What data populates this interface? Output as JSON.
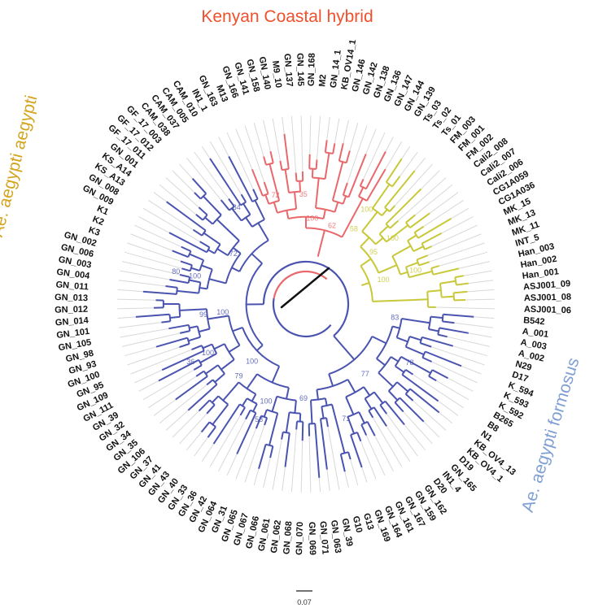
{
  "figure": {
    "title": "",
    "colors": {
      "aegypti": "#c8c83a",
      "hybrid": "#e8686c",
      "formosus": "#4a54b0",
      "root": "#111111",
      "hybrid_title": "#f0502a",
      "aegypti_title": "#d4a520",
      "formosus_title": "#7f9fd4",
      "guide": "#d8d8d8"
    },
    "clades": [
      {
        "name": "aegypti",
        "label": "Ae. aegypti aegypti",
        "color_key": "aegypti"
      },
      {
        "name": "hybrid",
        "label": "Kenyan Coastal hybrid",
        "color_key": "hybrid"
      },
      {
        "name": "formosus",
        "label": "Ae. aegypti formosus",
        "color_key": "formosus"
      }
    ],
    "leaves_clockwise_from_bottom": [
      {
        "label": "GN_070",
        "clade": "formosus"
      },
      {
        "label": "GN_068",
        "clade": "formosus"
      },
      {
        "label": "GN_062",
        "clade": "formosus"
      },
      {
        "label": "GN_061",
        "clade": "formosus"
      },
      {
        "label": "GN_066",
        "clade": "formosus"
      },
      {
        "label": "GN_067",
        "clade": "formosus"
      },
      {
        "label": "GN_065",
        "clade": "formosus"
      },
      {
        "label": "GN_31",
        "clade": "formosus"
      },
      {
        "label": "GN_064",
        "clade": "formosus"
      },
      {
        "label": "GN_42",
        "clade": "formosus"
      },
      {
        "label": "GN_36",
        "clade": "formosus"
      },
      {
        "label": "GN_33",
        "clade": "formosus"
      },
      {
        "label": "GN_40",
        "clade": "formosus"
      },
      {
        "label": "GN_43",
        "clade": "formosus"
      },
      {
        "label": "GN_41",
        "clade": "formosus"
      },
      {
        "label": "GN_37",
        "clade": "formosus"
      },
      {
        "label": "GN_106",
        "clade": "formosus"
      },
      {
        "label": "GN_35",
        "clade": "formosus"
      },
      {
        "label": "GN_34",
        "clade": "formosus"
      },
      {
        "label": "GN_32",
        "clade": "formosus"
      },
      {
        "label": "GN_39",
        "clade": "formosus"
      },
      {
        "label": "GN_111",
        "clade": "formosus"
      },
      {
        "label": "GN_109",
        "clade": "formosus"
      },
      {
        "label": "GN_95",
        "clade": "formosus"
      },
      {
        "label": "GN_100",
        "clade": "formosus"
      },
      {
        "label": "GN_93",
        "clade": "formosus"
      },
      {
        "label": "GN_98",
        "clade": "formosus"
      },
      {
        "label": "GN_105",
        "clade": "formosus"
      },
      {
        "label": "GN_101",
        "clade": "formosus"
      },
      {
        "label": "GN_014",
        "clade": "formosus"
      },
      {
        "label": "GN_012",
        "clade": "formosus"
      },
      {
        "label": "GN_013",
        "clade": "formosus"
      },
      {
        "label": "GN_011",
        "clade": "formosus"
      },
      {
        "label": "GN_004",
        "clade": "formosus"
      },
      {
        "label": "GN_003",
        "clade": "formosus"
      },
      {
        "label": "GN_006",
        "clade": "formosus"
      },
      {
        "label": "GN_002",
        "clade": "formosus"
      },
      {
        "label": "K3",
        "clade": "formosus"
      },
      {
        "label": "K2",
        "clade": "formosus"
      },
      {
        "label": "K1",
        "clade": "formosus"
      },
      {
        "label": "GN_009",
        "clade": "formosus"
      },
      {
        "label": "GN_008",
        "clade": "formosus"
      },
      {
        "label": "KS_A13",
        "clade": "formosus"
      },
      {
        "label": "KS_A14",
        "clade": "formosus"
      },
      {
        "label": "GN_001",
        "clade": "formosus"
      },
      {
        "label": "GF_17_011",
        "clade": "formosus"
      },
      {
        "label": "GF_17_012",
        "clade": "formosus"
      },
      {
        "label": "GF_17_003",
        "clade": "formosus"
      },
      {
        "label": "CAM_038",
        "clade": "formosus"
      },
      {
        "label": "CAM_037",
        "clade": "formosus"
      },
      {
        "label": "CAM_005",
        "clade": "formosus"
      },
      {
        "label": "CAM_010",
        "clade": "formosus"
      },
      {
        "label": "IN1_1",
        "clade": "formosus"
      },
      {
        "label": "GN_163",
        "clade": "formosus"
      },
      {
        "label": "M13",
        "clade": "hybrid"
      },
      {
        "label": "GN_166",
        "clade": "hybrid"
      },
      {
        "label": "GN_141",
        "clade": "hybrid"
      },
      {
        "label": "GN_158",
        "clade": "hybrid"
      },
      {
        "label": "GN_140",
        "clade": "hybrid"
      },
      {
        "label": "M9_10",
        "clade": "hybrid"
      },
      {
        "label": "GN_137",
        "clade": "hybrid"
      },
      {
        "label": "GN_145",
        "clade": "hybrid"
      },
      {
        "label": "GN_168",
        "clade": "hybrid"
      },
      {
        "label": "M2",
        "clade": "hybrid"
      },
      {
        "label": "GN_14_1",
        "clade": "hybrid"
      },
      {
        "label": "KB_OV14_1",
        "clade": "hybrid"
      },
      {
        "label": "GN_146",
        "clade": "hybrid"
      },
      {
        "label": "GN_142",
        "clade": "hybrid"
      },
      {
        "label": "GN_138",
        "clade": "hybrid"
      },
      {
        "label": "GN_136",
        "clade": "hybrid"
      },
      {
        "label": "GN_147",
        "clade": "hybrid"
      },
      {
        "label": "GN_144",
        "clade": "hybrid"
      },
      {
        "label": "GN_139",
        "clade": "hybrid"
      },
      {
        "label": "Ts_03",
        "clade": "aegypti"
      },
      {
        "label": "Ts_02",
        "clade": "aegypti"
      },
      {
        "label": "Ts_01",
        "clade": "aegypti"
      },
      {
        "label": "FM_003",
        "clade": "aegypti"
      },
      {
        "label": "FM_001",
        "clade": "aegypti"
      },
      {
        "label": "FM_002",
        "clade": "aegypti"
      },
      {
        "label": "Cali2_008",
        "clade": "aegypti"
      },
      {
        "label": "Cali2_007",
        "clade": "aegypti"
      },
      {
        "label": "Cali2_006",
        "clade": "aegypti"
      },
      {
        "label": "CG1A059",
        "clade": "aegypti"
      },
      {
        "label": "CG1A036",
        "clade": "aegypti"
      },
      {
        "label": "MK_15",
        "clade": "aegypti"
      },
      {
        "label": "MK_13",
        "clade": "aegypti"
      },
      {
        "label": "MK_11",
        "clade": "aegypti"
      },
      {
        "label": "INT_5",
        "clade": "aegypti"
      },
      {
        "label": "Han_003",
        "clade": "aegypti"
      },
      {
        "label": "Han_002",
        "clade": "aegypti"
      },
      {
        "label": "Han_001",
        "clade": "aegypti"
      },
      {
        "label": "ASJ001_09",
        "clade": "aegypti"
      },
      {
        "label": "ASJ001_08",
        "clade": "aegypti"
      },
      {
        "label": "ASJ001_06",
        "clade": "aegypti"
      },
      {
        "label": "B542",
        "clade": "formosus"
      },
      {
        "label": "A_001",
        "clade": "formosus"
      },
      {
        "label": "A_003",
        "clade": "formosus"
      },
      {
        "label": "A_002",
        "clade": "formosus"
      },
      {
        "label": "N29",
        "clade": "formosus"
      },
      {
        "label": "D17",
        "clade": "formosus"
      },
      {
        "label": "K_594",
        "clade": "formosus"
      },
      {
        "label": "K_593",
        "clade": "formosus"
      },
      {
        "label": "K_592",
        "clade": "formosus"
      },
      {
        "label": "B265",
        "clade": "formosus"
      },
      {
        "label": "B8",
        "clade": "formosus"
      },
      {
        "label": "N1",
        "clade": "formosus"
      },
      {
        "label": "KB_OV4_13",
        "clade": "formosus"
      },
      {
        "label": "KB_OV4_1",
        "clade": "formosus"
      },
      {
        "label": "D19",
        "clade": "formosus"
      },
      {
        "label": "GN_165",
        "clade": "formosus"
      },
      {
        "label": "IN1_4",
        "clade": "formosus"
      },
      {
        "label": "D20",
        "clade": "formosus"
      },
      {
        "label": "GN_162",
        "clade": "formosus"
      },
      {
        "label": "GN_159",
        "clade": "formosus"
      },
      {
        "label": "GN_167",
        "clade": "formosus"
      },
      {
        "label": "GN_161",
        "clade": "formosus"
      },
      {
        "label": "GN_164",
        "clade": "formosus"
      },
      {
        "label": "GN_169",
        "clade": "formosus"
      },
      {
        "label": "G13",
        "clade": "formosus"
      },
      {
        "label": "G10",
        "clade": "formosus"
      },
      {
        "label": "GN_39",
        "clade": "formosus"
      },
      {
        "label": "GN_063",
        "clade": "formosus"
      },
      {
        "label": "GN_071",
        "clade": "formosus"
      },
      {
        "label": "GN_069",
        "clade": "formosus"
      }
    ],
    "bootstrap_labels": [
      {
        "value": "35",
        "clade": "hybrid"
      },
      {
        "value": "62",
        "clade": "hybrid"
      },
      {
        "value": "72",
        "clade": "hybrid"
      },
      {
        "value": "100",
        "clade": "hybrid"
      },
      {
        "value": "100",
        "clade": "aegypti"
      },
      {
        "value": "100",
        "clade": "aegypti"
      },
      {
        "value": "100",
        "clade": "aegypti"
      },
      {
        "value": "95",
        "clade": "aegypti"
      },
      {
        "value": "100",
        "clade": "aegypti"
      },
      {
        "value": "58",
        "clade": "aegypti"
      },
      {
        "value": "100",
        "clade": "formosus"
      },
      {
        "value": "100",
        "clade": "formosus"
      },
      {
        "value": "100",
        "clade": "formosus"
      },
      {
        "value": "100",
        "clade": "formosus"
      },
      {
        "value": "100",
        "clade": "formosus"
      },
      {
        "value": "72",
        "clade": "formosus"
      },
      {
        "value": "84",
        "clade": "formosus"
      },
      {
        "value": "83",
        "clade": "formosus"
      },
      {
        "value": "78",
        "clade": "formosus"
      },
      {
        "value": "77",
        "clade": "formosus"
      },
      {
        "value": "71",
        "clade": "formosus"
      },
      {
        "value": "69",
        "clade": "formosus"
      },
      {
        "value": "58",
        "clade": "formosus"
      },
      {
        "value": "79",
        "clade": "formosus"
      },
      {
        "value": "36",
        "clade": "formosus"
      },
      {
        "value": "99",
        "clade": "formosus"
      },
      {
        "value": "80",
        "clade": "formosus"
      }
    ],
    "scale_bar": {
      "label": "0.07"
    }
  }
}
